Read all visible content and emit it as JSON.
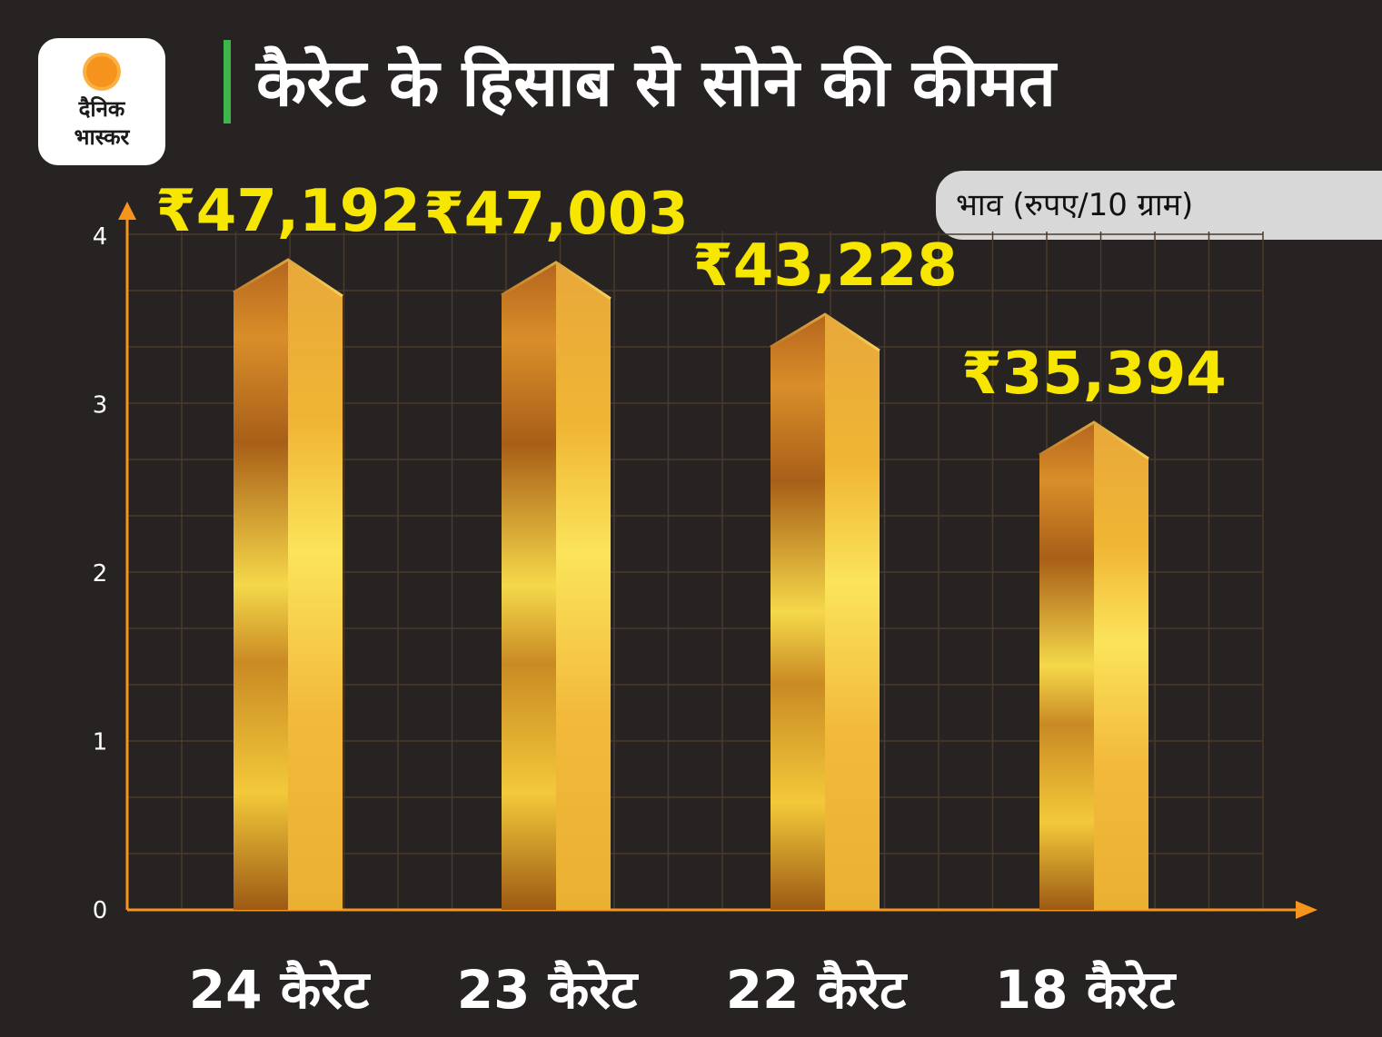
{
  "header": {
    "brand_line1": "दैनिक",
    "brand_line2": "भास्कर",
    "title": "कैरेट के हिसाब से सोने की कीमत",
    "unit_label": "भाव (रुपए/10 ग्राम)"
  },
  "colors": {
    "background": "#272322",
    "axis": "#f7941d",
    "grid": "#4a3a2a",
    "value_label": "#f7e600",
    "accent_bar": "#3db54a"
  },
  "chart_data": {
    "type": "bar",
    "title": "कैरेट के हिसाब से सोने की कीमत",
    "ylabel": "भाव (रुपए/10 ग्राम)",
    "categories": [
      "24 कैरेट",
      "23 कैरेट",
      "22 कैरेट",
      "18 कैरेट"
    ],
    "values": [
      47192,
      47003,
      43228,
      35394
    ],
    "value_labels": [
      "₹47,192",
      "₹47,003",
      "₹43,228",
      "₹35,394"
    ],
    "y_ticks": [
      "0",
      "1",
      "2",
      "3",
      "4"
    ],
    "ylim": [
      0,
      4
    ],
    "grid": true
  }
}
